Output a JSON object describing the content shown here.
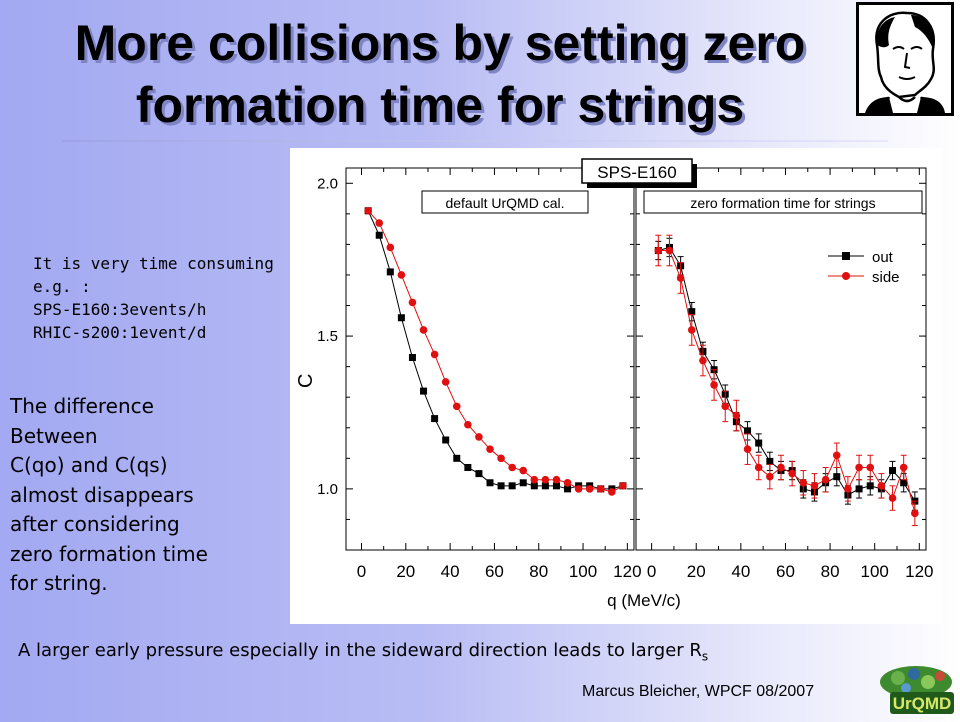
{
  "title_line1": "More collisions by setting zero",
  "title_line2": "formation time for strings",
  "note_small": [
    "It is very time consuming",
    "e.g. :",
    "SPS-E160:3events/h",
    "RHIC-s200:1event/d"
  ],
  "note_big": [
    "The difference",
    "Between",
    "C(qo) and C(qs)",
    "almost disappears",
    "after considering",
    "zero formation time",
    "for string."
  ],
  "bottom_text": "A larger early pressure especially in the sideward direction leads to larger R",
  "bottom_sub": "s",
  "footer": "Marcus Bleicher, WPCF 08/2007",
  "logo_text": "UrQMD",
  "chart_data": {
    "type": "scatter",
    "title": "SPS-E160",
    "ylabel": "C",
    "xlabel": "q (MeV/c)",
    "ylim": [
      0.8,
      2.05
    ],
    "xlim": [
      -7,
      123
    ],
    "yticks": [
      1.0,
      1.5,
      2.0
    ],
    "xticks": [
      0,
      20,
      40,
      60,
      80,
      100,
      120
    ],
    "legend_position": "top-right",
    "colors": {
      "out": "#000000",
      "side": "#e01010"
    },
    "panels": [
      {
        "label": "default UrQMD cal.",
        "series": [
          {
            "name": "out",
            "x": [
              3,
              8,
              13,
              18,
              23,
              28,
              33,
              38,
              43,
              48,
              53,
              58,
              63,
              68,
              73,
              78,
              83,
              88,
              93,
              98,
              103,
              108,
              113,
              118
            ],
            "y": [
              1.91,
              1.83,
              1.71,
              1.56,
              1.43,
              1.32,
              1.23,
              1.16,
              1.1,
              1.07,
              1.05,
              1.02,
              1.01,
              1.01,
              1.02,
              1.01,
              1.01,
              1.01,
              1.0,
              1.01,
              1.01,
              1.0,
              1.0,
              1.01
            ]
          },
          {
            "name": "side",
            "x": [
              3,
              8,
              13,
              18,
              23,
              28,
              33,
              38,
              43,
              48,
              53,
              58,
              63,
              68,
              73,
              78,
              83,
              88,
              93,
              98,
              103,
              108,
              113,
              118
            ],
            "y": [
              1.91,
              1.87,
              1.79,
              1.7,
              1.61,
              1.52,
              1.44,
              1.35,
              1.27,
              1.21,
              1.17,
              1.13,
              1.1,
              1.07,
              1.06,
              1.03,
              1.03,
              1.03,
              1.02,
              1.0,
              1.0,
              1.0,
              0.99,
              1.01
            ]
          }
        ]
      },
      {
        "label": "zero formation time for strings",
        "series": [
          {
            "name": "out",
            "x": [
              3,
              8,
              13,
              18,
              23,
              28,
              33,
              38,
              43,
              48,
              53,
              58,
              63,
              68,
              73,
              78,
              83,
              88,
              93,
              98,
              103,
              108,
              113,
              118
            ],
            "y": [
              1.78,
              1.79,
              1.73,
              1.58,
              1.45,
              1.39,
              1.31,
              1.22,
              1.19,
              1.15,
              1.09,
              1.06,
              1.06,
              1.0,
              0.99,
              1.02,
              1.04,
              0.98,
              1.0,
              1.01,
              1.0,
              1.06,
              1.02,
              0.96
            ],
            "err": [
              0.03,
              0.03,
              0.03,
              0.03,
              0.03,
              0.03,
              0.03,
              0.03,
              0.03,
              0.03,
              0.03,
              0.03,
              0.03,
              0.03,
              0.03,
              0.03,
              0.03,
              0.03,
              0.03,
              0.03,
              0.03,
              0.03,
              0.03,
              0.03
            ]
          },
          {
            "name": "side",
            "x": [
              3,
              8,
              13,
              18,
              23,
              28,
              33,
              38,
              43,
              48,
              53,
              58,
              63,
              68,
              73,
              78,
              83,
              88,
              93,
              98,
              103,
              108,
              113,
              118
            ],
            "y": [
              1.78,
              1.78,
              1.69,
              1.52,
              1.42,
              1.34,
              1.27,
              1.24,
              1.13,
              1.07,
              1.04,
              1.07,
              1.05,
              1.02,
              1.01,
              1.03,
              1.11,
              1.0,
              1.07,
              1.07,
              1.01,
              0.97,
              1.07,
              0.92
            ],
            "err": [
              0.05,
              0.05,
              0.05,
              0.05,
              0.05,
              0.05,
              0.05,
              0.05,
              0.05,
              0.04,
              0.04,
              0.04,
              0.04,
              0.04,
              0.04,
              0.04,
              0.04,
              0.04,
              0.04,
              0.04,
              0.04,
              0.04,
              0.04,
              0.04
            ]
          }
        ]
      }
    ]
  }
}
